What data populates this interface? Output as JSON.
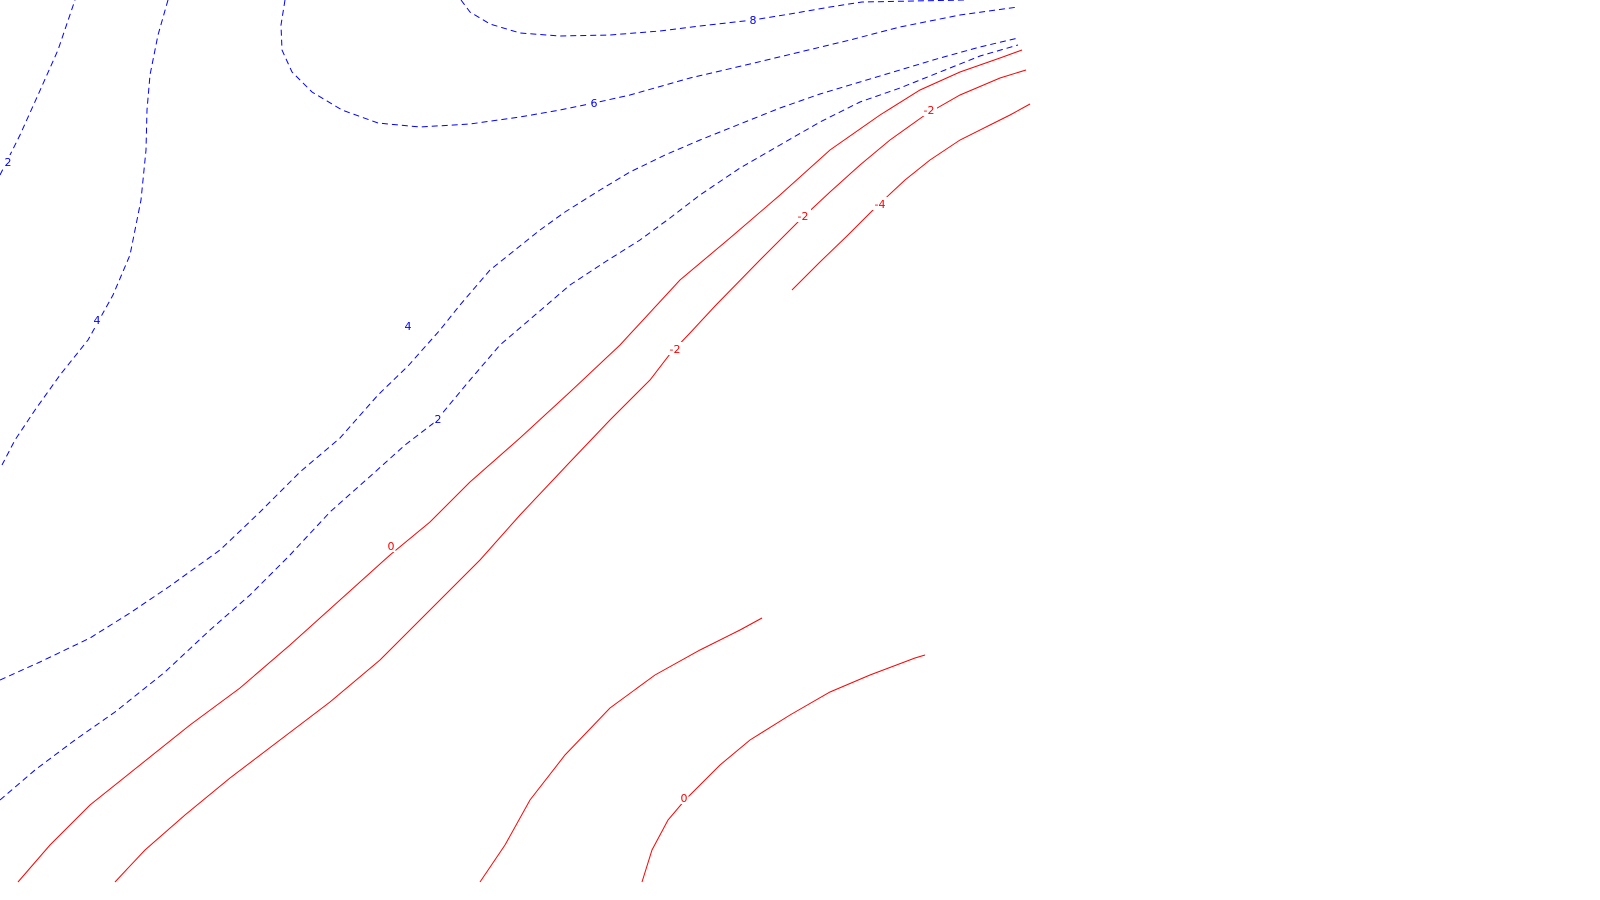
{
  "chart_data": {
    "type": "contour",
    "title": "",
    "xlabel": "",
    "ylabel": "",
    "grid": false,
    "legend": "none",
    "colors": {
      "positive": "#0000ff",
      "negative": "#ff0000",
      "background": "#ffffff"
    },
    "line_styles": {
      "positive": "dashed",
      "negative": "solid"
    },
    "levels": [
      {
        "id": "pos8",
        "value": 8,
        "label": "8",
        "sign": "positive"
      },
      {
        "id": "pos6",
        "value": 6,
        "label": "6",
        "sign": "positive"
      },
      {
        "id": "pos4",
        "value": 4,
        "label": "4",
        "sign": "positive"
      },
      {
        "id": "pos2",
        "value": 2,
        "label": "2",
        "sign": "positive"
      },
      {
        "id": "zero",
        "value": 0,
        "label": "0",
        "sign": "negative"
      },
      {
        "id": "neg2",
        "value": -2,
        "label": "-2",
        "sign": "negative"
      },
      {
        "id": "neg4",
        "value": -4,
        "label": "-4",
        "sign": "negative"
      }
    ]
  }
}
